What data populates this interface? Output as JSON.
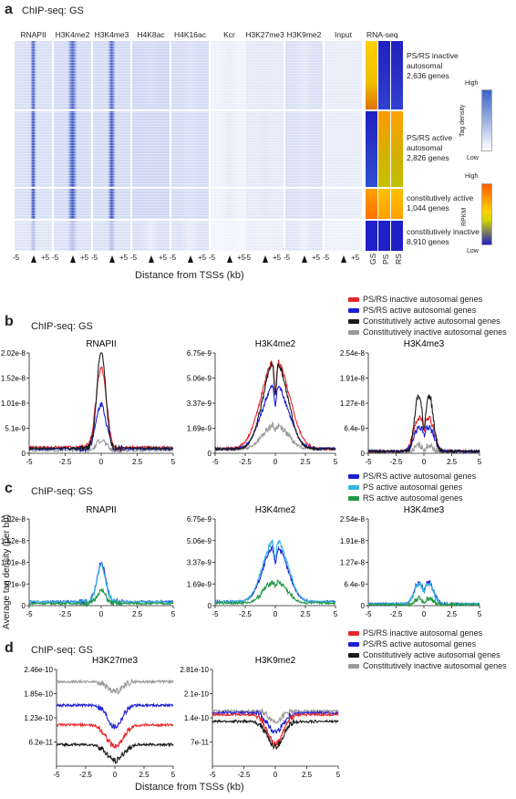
{
  "panel_a": {
    "letter": "a",
    "subtitle": "ChIP-seq: GS",
    "columns": [
      "RNAPII",
      "H3K4me2",
      "H3K4me3",
      "H4K8ac",
      "H4K16ac",
      "Kcr",
      "H3K27me3",
      "H3K9me2",
      "Input"
    ],
    "rnaseq_title": "RNA-seq",
    "rnaseq_columns": [
      "GS",
      "PS",
      "RS"
    ],
    "groups": [
      {
        "line1": "PS/RS inactive",
        "line2": "autosomal",
        "line3": "2,636 genes"
      },
      {
        "line1": "PS/RS active",
        "line2": "autosomal",
        "line3": "2,826 genes"
      },
      {
        "line1": "constitutively active",
        "line2": "1,044 genes",
        "line3": ""
      },
      {
        "line1": "constitutively inactive",
        "line2": "8,910 genes",
        "line3": ""
      }
    ],
    "x_left": "-5",
    "x_right": "+5",
    "xlabel": "Distance from TSSs (kb)",
    "scale1": {
      "high": "High",
      "low": "Low",
      "label": "Tag density"
    },
    "scale2": {
      "high": "High",
      "low": "Low",
      "label": "RPKM"
    }
  },
  "panel_b": {
    "letter": "b",
    "subtitle": "ChIP-seq: GS",
    "legend": [
      {
        "label": "PS/RS inactive autosomal genes",
        "color": "#e8262a"
      },
      {
        "label": "PS/RS active autosomal genes",
        "color": "#1d1fd6"
      },
      {
        "label": "Constitutively active autosomal genes",
        "color": "#1a1a1a"
      },
      {
        "label": "Constitutively inactive autosomal genes",
        "color": "#9a9a9a"
      }
    ]
  },
  "panel_c": {
    "letter": "c",
    "subtitle": "ChIP-seq: GS",
    "legend": [
      {
        "label": "PS/RS active autosomal genes",
        "color": "#1d1fd6"
      },
      {
        "label": "PS active autosomal genes",
        "color": "#36b6e0"
      },
      {
        "label": "RS active autosomal genes",
        "color": "#229944"
      }
    ]
  },
  "panel_d": {
    "letter": "d",
    "subtitle": "ChIP-seq: GS",
    "legend": [
      {
        "label": "PS/RS inactive autosomal genes",
        "color": "#e8262a"
      },
      {
        "label": "PS/RS active autosomal genes",
        "color": "#1d1fd6"
      },
      {
        "label": "Constitutively active autosomal genes",
        "color": "#1a1a1a"
      },
      {
        "label": "Constitutively inactive autosomal genes",
        "color": "#9a9a9a"
      }
    ],
    "xlabel": "Distance from TSSs (kb)"
  },
  "y_axis_label": "Average tag density (per bp)",
  "chart_data": [
    {
      "type": "line",
      "panel": "b",
      "title": "RNAPII",
      "x": [
        -5,
        -2.5,
        0,
        2.5,
        5
      ],
      "xticks": [
        "-5",
        "-2.5",
        "0",
        "2.5",
        "5"
      ],
      "yticks": [
        "0",
        "5.1e-9",
        "1.01e-8",
        "1.52e-8",
        "2.02e-8"
      ],
      "ylim": [
        0,
        2.02e-08
      ],
      "series": [
        {
          "name": "PS/RS inactive autosomal genes",
          "color": "#e8262a",
          "base": 1.2e-09,
          "peak": 1.6e-08,
          "width": 0.35,
          "dip": 0
        },
        {
          "name": "PS/RS active autosomal genes",
          "color": "#1d1fd6",
          "base": 9e-10,
          "peak": 9e-09,
          "width": 0.35,
          "dip": 0
        },
        {
          "name": "Constitutively active autosomal genes",
          "color": "#1a1a1a",
          "base": 1e-09,
          "peak": 2e-08,
          "width": 0.3,
          "dip": 0
        },
        {
          "name": "Constitutively inactive autosomal genes",
          "color": "#9a9a9a",
          "base": 6e-10,
          "peak": 2.2e-09,
          "width": 0.3,
          "dip": 0
        }
      ]
    },
    {
      "type": "line",
      "panel": "b",
      "title": "H3K4me2",
      "x": [
        -5,
        -2.5,
        0,
        2.5,
        5
      ],
      "xticks": [
        "-5",
        "-2.5",
        "0",
        "2.5",
        "5"
      ],
      "yticks": [
        "0",
        "1.69e-9",
        "3.37e-9",
        "5.06e-9",
        "6.75e-9"
      ],
      "ylim": [
        0,
        6.75e-09
      ],
      "series": [
        {
          "name": "PS/RS inactive autosomal genes",
          "color": "#e8262a",
          "base": 3e-10,
          "peak": 6.2e-09,
          "width": 1.0,
          "dip": 0.35
        },
        {
          "name": "PS/RS active autosomal genes",
          "color": "#1d1fd6",
          "base": 3e-10,
          "peak": 4.6e-09,
          "width": 0.9,
          "dip": 0.3
        },
        {
          "name": "Constitutively active autosomal genes",
          "color": "#1a1a1a",
          "base": 3e-10,
          "peak": 6.6e-09,
          "width": 0.8,
          "dip": 0.4
        },
        {
          "name": "Constitutively inactive autosomal genes",
          "color": "#9a9a9a",
          "base": 3e-10,
          "peak": 1.8e-09,
          "width": 0.8,
          "dip": 0.2
        }
      ]
    },
    {
      "type": "line",
      "panel": "b",
      "title": "H3K4me3",
      "x": [
        -5,
        -2.5,
        0,
        2.5,
        5
      ],
      "xticks": [
        "-5",
        "-2.5",
        "0",
        "2.5",
        "5"
      ],
      "yticks": [
        "0",
        "6.4e-9",
        "1.27e-8",
        "1.91e-8",
        "2.54e-8"
      ],
      "ylim": [
        0,
        2.54e-08
      ],
      "series": [
        {
          "name": "PS/RS inactive autosomal genes",
          "color": "#e8262a",
          "base": 5e-10,
          "peak": 1.4e-08,
          "width": 0.45,
          "dip": 0.35
        },
        {
          "name": "PS/RS active autosomal genes",
          "color": "#1d1fd6",
          "base": 5e-10,
          "peak": 1e-08,
          "width": 0.45,
          "dip": 0.35
        },
        {
          "name": "Constitutively active autosomal genes",
          "color": "#1a1a1a",
          "base": 5e-10,
          "peak": 2.5e-08,
          "width": 0.35,
          "dip": 0.4
        },
        {
          "name": "Constitutively inactive autosomal genes",
          "color": "#9a9a9a",
          "base": 4e-10,
          "peak": 3e-09,
          "width": 0.3,
          "dip": 0.2
        }
      ]
    },
    {
      "type": "line",
      "panel": "c",
      "title": "RNAPII",
      "x": [
        -5,
        -2.5,
        0,
        2.5,
        5
      ],
      "xticks": [
        "-5",
        "-2.5",
        "0",
        "2.5",
        "5"
      ],
      "yticks": [
        "0",
        "5.1e-9",
        "1.01e-8",
        "1.52e-8",
        "2.02e-8"
      ],
      "ylim": [
        0,
        2.02e-08
      ],
      "series": [
        {
          "name": "PS/RS active autosomal genes",
          "color": "#1d1fd6",
          "base": 9e-10,
          "peak": 9e-09,
          "width": 0.3,
          "dip": 0
        },
        {
          "name": "PS active autosomal genes",
          "color": "#36b6e0",
          "base": 9e-10,
          "peak": 8.5e-09,
          "width": 0.3,
          "dip": 0
        },
        {
          "name": "RS active autosomal genes",
          "color": "#229944",
          "base": 5e-10,
          "peak": 3e-09,
          "width": 0.3,
          "dip": 0
        }
      ]
    },
    {
      "type": "line",
      "panel": "c",
      "title": "H3K4me2",
      "x": [
        -5,
        -2.5,
        0,
        2.5,
        5
      ],
      "xticks": [
        "-5",
        "-2.5",
        "0",
        "2.5",
        "5"
      ],
      "yticks": [
        "0",
        "1.69e-9",
        "3.37e-9",
        "5.06e-9",
        "6.75e-9"
      ],
      "ylim": [
        0,
        6.75e-09
      ],
      "series": [
        {
          "name": "PS/RS active autosomal genes",
          "color": "#1d1fd6",
          "base": 3e-10,
          "peak": 4.8e-09,
          "width": 0.8,
          "dip": 0.3
        },
        {
          "name": "PS active autosomal genes",
          "color": "#36b6e0",
          "base": 3e-10,
          "peak": 5.4e-09,
          "width": 0.8,
          "dip": 0.3
        },
        {
          "name": "RS active autosomal genes",
          "color": "#229944",
          "base": 2e-10,
          "peak": 2e-09,
          "width": 0.7,
          "dip": 0.2
        }
      ]
    },
    {
      "type": "line",
      "panel": "c",
      "title": "H3K4me3",
      "x": [
        -5,
        -2.5,
        0,
        2.5,
        5
      ],
      "xticks": [
        "-5",
        "-2.5",
        "0",
        "2.5",
        "5"
      ],
      "yticks": [
        "0",
        "6.4e-9",
        "1.27e-8",
        "1.91e-8",
        "2.54e-8"
      ],
      "ylim": [
        0,
        2.54e-08
      ],
      "series": [
        {
          "name": "PS/RS active autosomal genes",
          "color": "#1d1fd6",
          "base": 5e-10,
          "peak": 1.1e-08,
          "width": 0.4,
          "dip": 0.3
        },
        {
          "name": "PS active autosomal genes",
          "color": "#36b6e0",
          "base": 5e-10,
          "peak": 1e-08,
          "width": 0.4,
          "dip": 0.3
        },
        {
          "name": "RS active autosomal genes",
          "color": "#229944",
          "base": 3e-10,
          "peak": 3.5e-09,
          "width": 0.3,
          "dip": 0.2
        }
      ]
    },
    {
      "type": "line",
      "panel": "d",
      "title": "H3K27me3",
      "x": [
        -5,
        -2.5,
        0,
        2.5,
        5
      ],
      "xticks": [
        "-5",
        "-2.5",
        "0",
        "2.5",
        "5"
      ],
      "yticks": [
        "6.2e-11",
        "1.23e-10",
        "1.85e-10",
        "2.46e-10"
      ],
      "ylim": [
        0,
        2.46e-10
      ],
      "series": [
        {
          "name": "Constitutively inactive autosomal genes",
          "color": "#9a9a9a",
          "base": 2.15e-10,
          "peak": -2.5e-11,
          "width": 0.6,
          "dip": 0
        },
        {
          "name": "PS/RS active autosomal genes",
          "color": "#1d1fd6",
          "base": 1.55e-10,
          "peak": -5.5e-11,
          "width": 0.6,
          "dip": 0
        },
        {
          "name": "PS/RS inactive autosomal genes",
          "color": "#e8262a",
          "base": 1.05e-10,
          "peak": -5.5e-11,
          "width": 0.7,
          "dip": 0
        },
        {
          "name": "Constitutively active autosomal genes",
          "color": "#1a1a1a",
          "base": 5.5e-11,
          "peak": -4e-11,
          "width": 0.7,
          "dip": 0
        }
      ]
    },
    {
      "type": "line",
      "panel": "d",
      "title": "H3K9me2",
      "x": [
        -5,
        -2.5,
        0,
        2.5,
        5
      ],
      "xticks": [
        "-5",
        "-2.5",
        "0",
        "2.5",
        "5"
      ],
      "yticks": [
        "7e-11",
        "1.4e-10",
        "2.1e-10",
        "2.81e-10"
      ],
      "ylim": [
        0,
        2.81e-10
      ],
      "series": [
        {
          "name": "Constitutively inactive autosomal genes",
          "color": "#9a9a9a",
          "base": 1.6e-10,
          "peak": -3e-11,
          "width": 0.5,
          "dip": 0
        },
        {
          "name": "PS/RS active autosomal genes",
          "color": "#1d1fd6",
          "base": 1.55e-10,
          "peak": -5.5e-11,
          "width": 0.6,
          "dip": 0
        },
        {
          "name": "PS/RS inactive autosomal genes",
          "color": "#e8262a",
          "base": 1.5e-10,
          "peak": -8.5e-11,
          "width": 0.6,
          "dip": 0
        },
        {
          "name": "Constitutively active autosomal genes",
          "color": "#1a1a1a",
          "base": 1.3e-10,
          "peak": -7.5e-11,
          "width": 0.6,
          "dip": 0
        }
      ]
    }
  ]
}
